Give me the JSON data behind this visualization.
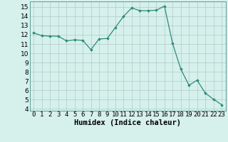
{
  "x": [
    0,
    1,
    2,
    3,
    4,
    5,
    6,
    7,
    8,
    9,
    10,
    11,
    12,
    13,
    14,
    15,
    16,
    17,
    18,
    19,
    20,
    21,
    22,
    23
  ],
  "y": [
    12.2,
    11.9,
    11.85,
    11.85,
    11.35,
    11.45,
    11.4,
    10.4,
    11.55,
    11.6,
    12.8,
    14.0,
    14.9,
    14.6,
    14.6,
    14.65,
    15.1,
    11.05,
    8.3,
    6.55,
    7.1,
    5.7,
    5.05,
    4.45
  ],
  "line_color": "#2e8b7a",
  "marker_color": "#2e8b7a",
  "bg_color": "#d6f0ec",
  "grid_color": "#b0ccc8",
  "xlabel": "Humidex (Indice chaleur)",
  "xlim": [
    -0.5,
    23.5
  ],
  "ylim": [
    3.8,
    15.6
  ],
  "yticks": [
    4,
    5,
    6,
    7,
    8,
    9,
    10,
    11,
    12,
    13,
    14,
    15
  ],
  "xtick_labels": [
    "0",
    "1",
    "2",
    "3",
    "4",
    "5",
    "6",
    "7",
    "8",
    "9",
    "10",
    "11",
    "12",
    "13",
    "14",
    "15",
    "16",
    "17",
    "18",
    "19",
    "20",
    "21",
    "22",
    "23"
  ],
  "label_fontsize": 7.5,
  "tick_fontsize": 6.5
}
